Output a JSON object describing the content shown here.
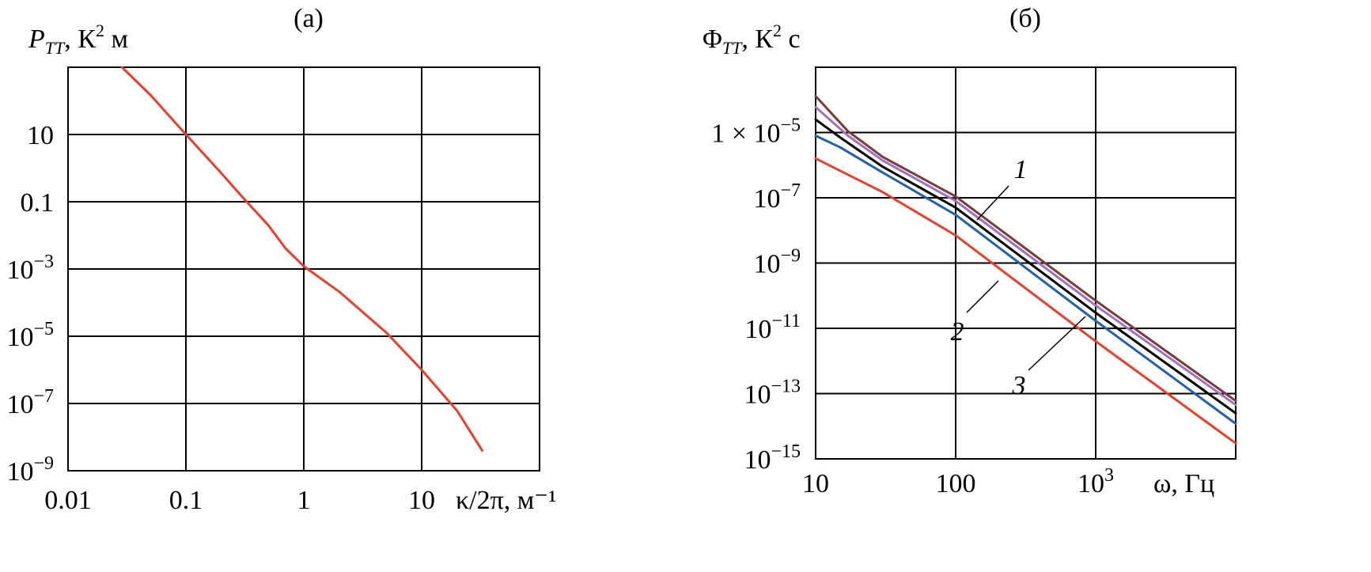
{
  "chart_data": [
    {
      "id": "a",
      "type": "line",
      "panel_label": "(а)",
      "ylabel_parts": {
        "sym": "P",
        "sub": "TT",
        "unit": ", К",
        "sup": "2",
        "unit2": " м"
      },
      "xlabel": "κ/2π, м⁻¹",
      "x_scale": "log",
      "y_scale": "log",
      "xlim": [
        0.01,
        100
      ],
      "ylim": [
        1e-09,
        1000.0
      ],
      "grid": true,
      "x_ticks": [
        {
          "value": 0.01,
          "label": "0.01"
        },
        {
          "value": 0.1,
          "label": "0.1"
        },
        {
          "value": 1,
          "label": "1"
        },
        {
          "value": 10,
          "label": "10"
        }
      ],
      "y_ticks": [
        {
          "value": 1e-09,
          "base": "10",
          "exp": "−9"
        },
        {
          "value": 1e-07,
          "base": "10",
          "exp": "−7"
        },
        {
          "value": 1e-05,
          "base": "10",
          "exp": "−5"
        },
        {
          "value": 0.001,
          "base": "10",
          "exp": "−3"
        },
        {
          "value": 0.1,
          "base": "0.1",
          "exp": ""
        },
        {
          "value": 10,
          "base": "10",
          "exp": ""
        }
      ],
      "extra_h_gridlines": [
        1000
      ],
      "series": [
        {
          "color": "#e8402a",
          "x": [
            0.0287,
            0.05,
            0.1,
            0.2,
            0.3,
            0.5,
            0.7,
            1.0,
            2.0,
            5.0,
            10.0,
            20.0,
            32.6
          ],
          "y": [
            1000,
            150,
            10,
            0.7,
            0.14,
            0.02,
            0.0041,
            0.0012,
            0.00021,
            1.3e-05,
            1e-06,
            6e-08,
            4e-09
          ]
        }
      ]
    },
    {
      "id": "b",
      "type": "line",
      "panel_label": "(б)",
      "ylabel_parts": {
        "sym": "Φ",
        "sub": "TT",
        "unit": ", К",
        "sup": "2",
        "unit2": " с"
      },
      "xlabel": "ω, Гц",
      "x_scale": "log",
      "y_scale": "log",
      "xlim": [
        10,
        10000
      ],
      "ylim": [
        1e-15,
        0.001
      ],
      "grid": true,
      "x_ticks": [
        {
          "value": 10,
          "base": "10",
          "exp": ""
        },
        {
          "value": 100,
          "base": "100",
          "exp": ""
        },
        {
          "value": 1000,
          "base": "10",
          "exp": "3"
        }
      ],
      "y_ticks": [
        {
          "value": 1e-15,
          "base": "10",
          "exp": "−15"
        },
        {
          "value": 1e-13,
          "base": "10",
          "exp": "−13"
        },
        {
          "value": 1e-11,
          "base": "10",
          "exp": "−11"
        },
        {
          "value": 1e-09,
          "base": "10",
          "exp": "−9"
        },
        {
          "value": 1e-07,
          "base": "10",
          "exp": "−7"
        },
        {
          "value": 1e-05,
          "base": "1 × 10",
          "exp": "−5"
        }
      ],
      "series": [
        {
          "color": "#7a3b3b",
          "x": [
            10,
            17,
            30,
            100,
            1000,
            10000
          ],
          "y": [
            0.00013,
            1.1e-05,
            1.8e-06,
            1.1e-07,
            7e-11,
            6e-14
          ]
        },
        {
          "color": "#a070c0",
          "x": [
            10,
            17,
            30,
            100,
            1000,
            10000
          ],
          "y": [
            6e-05,
            8e-06,
            1.4e-06,
            8e-08,
            5e-11,
            4.5e-14
          ]
        },
        {
          "color": "#000000",
          "x": [
            10,
            15,
            30,
            100,
            1000,
            10000
          ],
          "y": [
            2.5e-05,
            7e-06,
            9e-07,
            5e-08,
            3e-11,
            2.5e-14
          ]
        },
        {
          "color": "#2060b0",
          "x": [
            10,
            15,
            30,
            100,
            1000,
            10000
          ],
          "y": [
            8e-06,
            3.5e-06,
            6e-07,
            3e-08,
            1.7e-11,
            1.2e-14
          ]
        },
        {
          "color": "#e8402a",
          "x": [
            10,
            30,
            100,
            1000,
            10000
          ],
          "y": [
            1.6e-06,
            1.5e-07,
            7e-09,
            4e-12,
            3e-15
          ]
        }
      ],
      "annotations": [
        {
          "text": "1",
          "target_series": 1
        },
        {
          "text": "2",
          "target_series": 3
        },
        {
          "text": "3",
          "target_series": 2
        }
      ]
    }
  ]
}
